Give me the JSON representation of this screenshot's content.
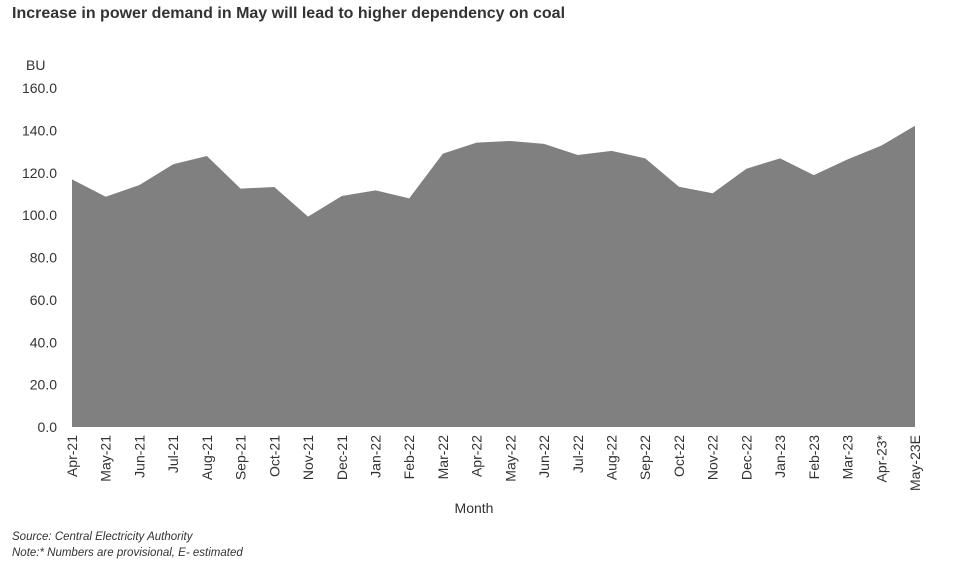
{
  "chart_data": {
    "type": "area",
    "title": "Increase in power demand in May will lead to higher dependency on coal",
    "ylabel": "BU",
    "xlabel": "Month",
    "ylim": [
      0,
      160
    ],
    "yticks": [
      "0.0",
      "20.0",
      "40.0",
      "60.0",
      "80.0",
      "100.0",
      "120.0",
      "140.0",
      "160.0"
    ],
    "grid": false,
    "color": "#808080",
    "categories": [
      "Apr-21",
      "May-21",
      "Jun-21",
      "Jul-21",
      "Aug-21",
      "Sep-21",
      "Oct-21",
      "Nov-21",
      "Dec-21",
      "Jan-22",
      "Feb-22",
      "Mar-22",
      "Apr-22",
      "May-22",
      "Jun-22",
      "Jul-22",
      "Aug-22",
      "Sep-22",
      "Oct-22",
      "Nov-22",
      "Dec-22",
      "Jan-23",
      "Feb-23",
      "Mar-23",
      "Apr-23*",
      "May-23E"
    ],
    "values": [
      116.9,
      108.7,
      114.2,
      124.0,
      127.9,
      112.5,
      113.3,
      99.3,
      109.0,
      111.7,
      107.9,
      129.0,
      134.2,
      135.0,
      133.6,
      128.4,
      130.3,
      126.8,
      113.4,
      110.3,
      121.9,
      126.8,
      118.9,
      126.3,
      132.8,
      142.2
    ]
  },
  "notes": {
    "source": "Source: Central Electricity Authority",
    "note": "Note:* Numbers are provisional, E- estimated"
  }
}
